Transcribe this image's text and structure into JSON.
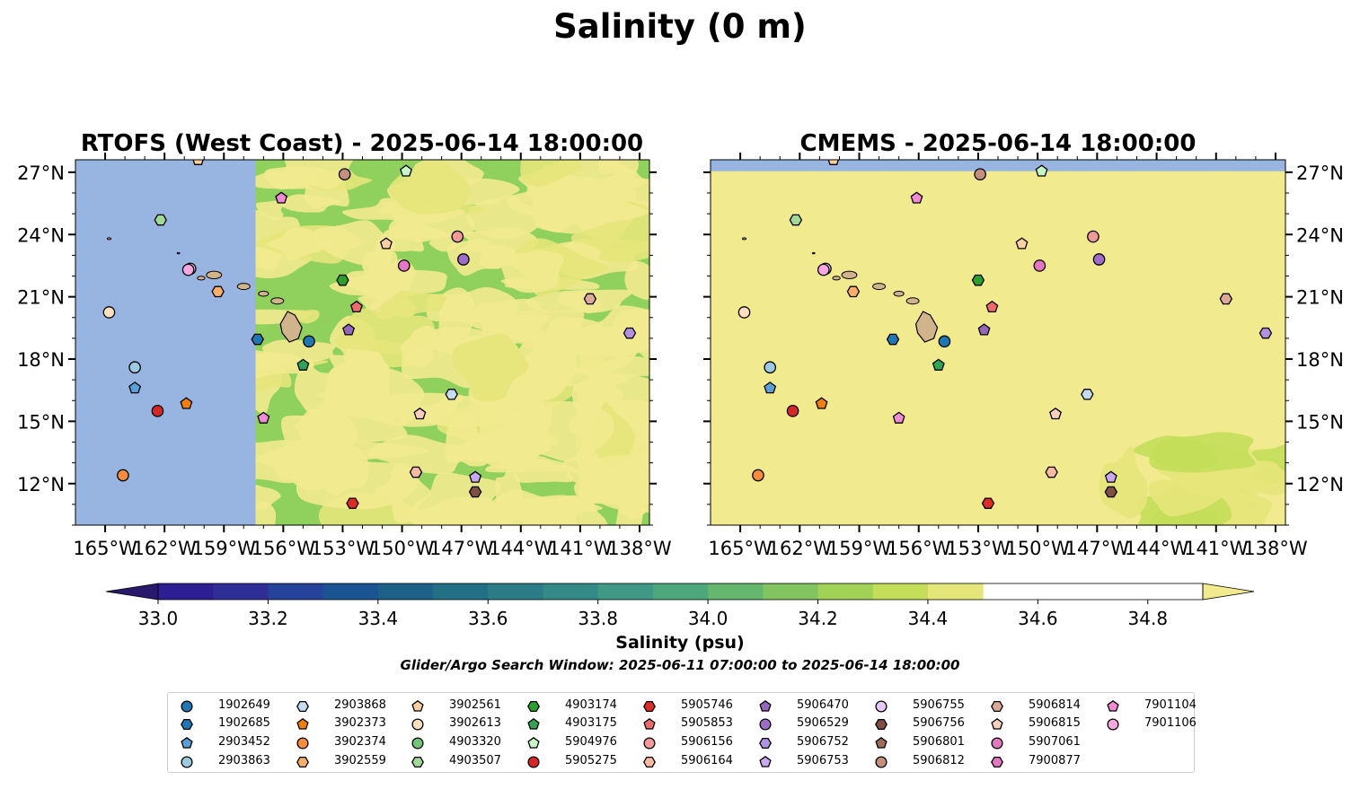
{
  "figure": {
    "suptitle": "Salinity (0 m)",
    "colorbar_label": "Salinity (psu)",
    "search_window": "Glider/Argo Search Window: 2025-06-11 07:00:00 to 2025-06-14 18:00:00"
  },
  "colors": {
    "land": "#d2b48c",
    "nodata": "#98b4e0",
    "colormap": [
      "#2a186c",
      "#2e1e93",
      "#2e2e96",
      "#27429a",
      "#1b5493",
      "#1d6188",
      "#236f85",
      "#2b7c86",
      "#348a86",
      "#3f9985",
      "#4ea77c",
      "#65b66f",
      "#81c460",
      "#a1d256",
      "#c4de5a",
      "#e5e67a",
      "#f2ea8f"
    ]
  },
  "chart_data": [
    {
      "type": "heatmap",
      "title": "RTOFS (West Coast) - 2025-06-14 18:00:00",
      "xlim": [
        -166.5,
        -137.5
      ],
      "ylim": [
        10,
        27.6
      ],
      "x_ticks": [
        -165,
        -162,
        -159,
        -156,
        -153,
        -150,
        -147,
        -144,
        -141,
        -138
      ],
      "x_ticklabels": [
        "165°W",
        "162°W",
        "159°W",
        "156°W",
        "153°W",
        "150°W",
        "147°W",
        "144°W",
        "141°W",
        "138°W"
      ],
      "y_ticks": [
        12,
        15,
        18,
        21,
        24,
        27
      ],
      "y_ticklabels": [
        "12°N",
        "15°N",
        "18°N",
        "21°N",
        "24°N",
        "27°N"
      ],
      "model_no_data_west_of": -157.4,
      "salinity_range_shown": [
        34.4,
        34.9
      ]
    },
    {
      "type": "heatmap",
      "title": "CMEMS - 2025-06-14 18:00:00",
      "xlim": [
        -166.5,
        -137.5
      ],
      "ylim": [
        10,
        27.6
      ],
      "x_ticks": [
        -165,
        -162,
        -159,
        -156,
        -153,
        -150,
        -147,
        -144,
        -141,
        -138
      ],
      "x_ticklabels": [
        "165°W",
        "162°W",
        "159°W",
        "156°W",
        "153°W",
        "150°W",
        "147°W",
        "144°W",
        "141°W",
        "138°W"
      ],
      "y_ticks": [
        12,
        15,
        18,
        21,
        24,
        27
      ],
      "y_ticklabels": [
        "12°N",
        "15°N",
        "18°N",
        "21°N",
        "24°N",
        "27°N"
      ],
      "model_no_data_north_of": 27.05,
      "salinity_range_shown": [
        34.2,
        34.9
      ]
    }
  ],
  "colorbar": {
    "min": 32.9,
    "max": 34.9,
    "step": 0.1,
    "extend": "both",
    "ticks": [
      33.0,
      33.2,
      33.4,
      33.6,
      33.8,
      34.0,
      34.2,
      34.4,
      34.6,
      34.8
    ],
    "ticklabels": [
      "33.0",
      "33.2",
      "33.4",
      "33.6",
      "33.8",
      "34.0",
      "34.2",
      "34.4",
      "34.6",
      "34.8"
    ]
  },
  "floats": [
    {
      "id": "1902649",
      "marker": "o",
      "color": "#1f77b4",
      "lon": -154.7,
      "lat": 18.85,
      "show": true
    },
    {
      "id": "1902685",
      "marker": "h",
      "color": "#1f77b4",
      "lon": -157.3,
      "lat": 18.95,
      "show": true
    },
    {
      "id": "2903452",
      "marker": "p",
      "color": "#5aa0d8",
      "lon": -163.5,
      "lat": 16.6,
      "show": true
    },
    {
      "id": "2903863",
      "marker": "o",
      "color": "#9ecae1",
      "lon": -163.5,
      "lat": 17.6,
      "show": true
    },
    {
      "id": "2903868",
      "marker": "h",
      "color": "#c6dbef",
      "lon": -147.5,
      "lat": 16.3,
      "show": true
    },
    {
      "id": "3902373",
      "marker": "p",
      "color": "#f47f0e",
      "lon": -160.9,
      "lat": 15.85,
      "show": true
    },
    {
      "id": "3902374",
      "marker": "o",
      "color": "#fd8d3c",
      "lon": -164.1,
      "lat": 12.4,
      "show": true
    },
    {
      "id": "3902559",
      "marker": "h",
      "color": "#fdae6b",
      "lon": -159.3,
      "lat": 21.25,
      "show": true
    },
    {
      "id": "3902561",
      "marker": "p",
      "color": "#fdd0a2",
      "lon": -160.3,
      "lat": 27.6,
      "show": true
    },
    {
      "id": "3902613",
      "marker": "o",
      "color": "#fee0c0",
      "lon": -164.8,
      "lat": 20.25,
      "show": true
    },
    {
      "id": "4903320",
      "marker": "o",
      "color": "#74c476",
      "lon": 0,
      "lat": 0,
      "show": false
    },
    {
      "id": "4903507",
      "marker": "h",
      "color": "#a1d99b",
      "lon": -162.2,
      "lat": 24.7,
      "show": true
    },
    {
      "id": "4903174",
      "marker": "h",
      "color": "#2ca02c",
      "lon": -153.0,
      "lat": 21.8,
      "show": true
    },
    {
      "id": "4903175",
      "marker": "p",
      "color": "#31a354",
      "lon": -155.0,
      "lat": 17.7,
      "show": true
    },
    {
      "id": "5904976",
      "marker": "p",
      "color": "#c7f5c7",
      "lon": -149.8,
      "lat": 27.05,
      "show": true
    },
    {
      "id": "5905275",
      "marker": "o",
      "color": "#d62728",
      "lon": -162.35,
      "lat": 15.5,
      "show": true
    },
    {
      "id": "5905746",
      "marker": "h",
      "color": "#de2d26",
      "lon": -152.5,
      "lat": 11.05,
      "show": true
    },
    {
      "id": "5905853",
      "marker": "p",
      "color": "#ef6b6b",
      "lon": -152.3,
      "lat": 20.5,
      "show": true
    },
    {
      "id": "5906156",
      "marker": "o",
      "color": "#f29a9a",
      "lon": -147.2,
      "lat": 23.9,
      "show": true
    },
    {
      "id": "5906164",
      "marker": "h",
      "color": "#fcbba1",
      "lon": -149.3,
      "lat": 12.55,
      "show": true
    },
    {
      "id": "5906470",
      "marker": "p",
      "color": "#9467bd",
      "lon": -152.7,
      "lat": 19.4,
      "show": true
    },
    {
      "id": "5906529",
      "marker": "o",
      "color": "#9e6dc9",
      "lon": -146.9,
      "lat": 22.8,
      "show": true
    },
    {
      "id": "5906752",
      "marker": "h",
      "color": "#b391e0",
      "lon": -138.5,
      "lat": 19.25,
      "show": true
    },
    {
      "id": "5906753",
      "marker": "p",
      "color": "#c8a8ef",
      "lon": -146.3,
      "lat": 12.3,
      "show": true
    },
    {
      "id": "5906755",
      "marker": "o",
      "color": "#e5c8f5",
      "lon": -160.7,
      "lat": 22.35,
      "show": true
    },
    {
      "id": "5906756",
      "marker": "h",
      "color": "#7f4f44",
      "lon": -146.3,
      "lat": 11.6,
      "show": true
    },
    {
      "id": "5906801",
      "marker": "p",
      "color": "#9c6b5a",
      "lon": 0,
      "lat": 0,
      "show": false
    },
    {
      "id": "5906812",
      "marker": "o",
      "color": "#c4907e",
      "lon": -152.9,
      "lat": 26.9,
      "show": true
    },
    {
      "id": "5906814",
      "marker": "h",
      "color": "#dba996",
      "lon": -140.5,
      "lat": 20.9,
      "show": true
    },
    {
      "id": "5906815",
      "marker": "p",
      "color": "#f7cfbe",
      "lon": -149.1,
      "lat": 15.35,
      "show": true
    },
    {
      "id": "5907061",
      "marker": "o",
      "color": "#e377c2",
      "lon": -149.9,
      "lat": 22.5,
      "show": true
    },
    {
      "id": "7900877",
      "marker": "h",
      "color": "#e377c2",
      "lon": 0,
      "lat": 0,
      "show": false
    },
    {
      "id": "7901104",
      "marker": "p",
      "color": "#f08cd4",
      "lon": -157.0,
      "lat": 15.15,
      "show": true
    },
    {
      "id": "7901106",
      "marker": "o",
      "color": "#f7a8e0",
      "lon": -160.8,
      "lat": 22.3,
      "show": true
    },
    {
      "id": "7901104b",
      "marker": "p",
      "color": "#f08cd4",
      "lon": -156.1,
      "lat": 25.75,
      "show": true,
      "legend": false
    },
    {
      "id": "3902561b",
      "marker": "p",
      "color": "#fdd0a2",
      "lon": -150.8,
      "lat": 23.55,
      "show": true,
      "legend": false
    }
  ]
}
